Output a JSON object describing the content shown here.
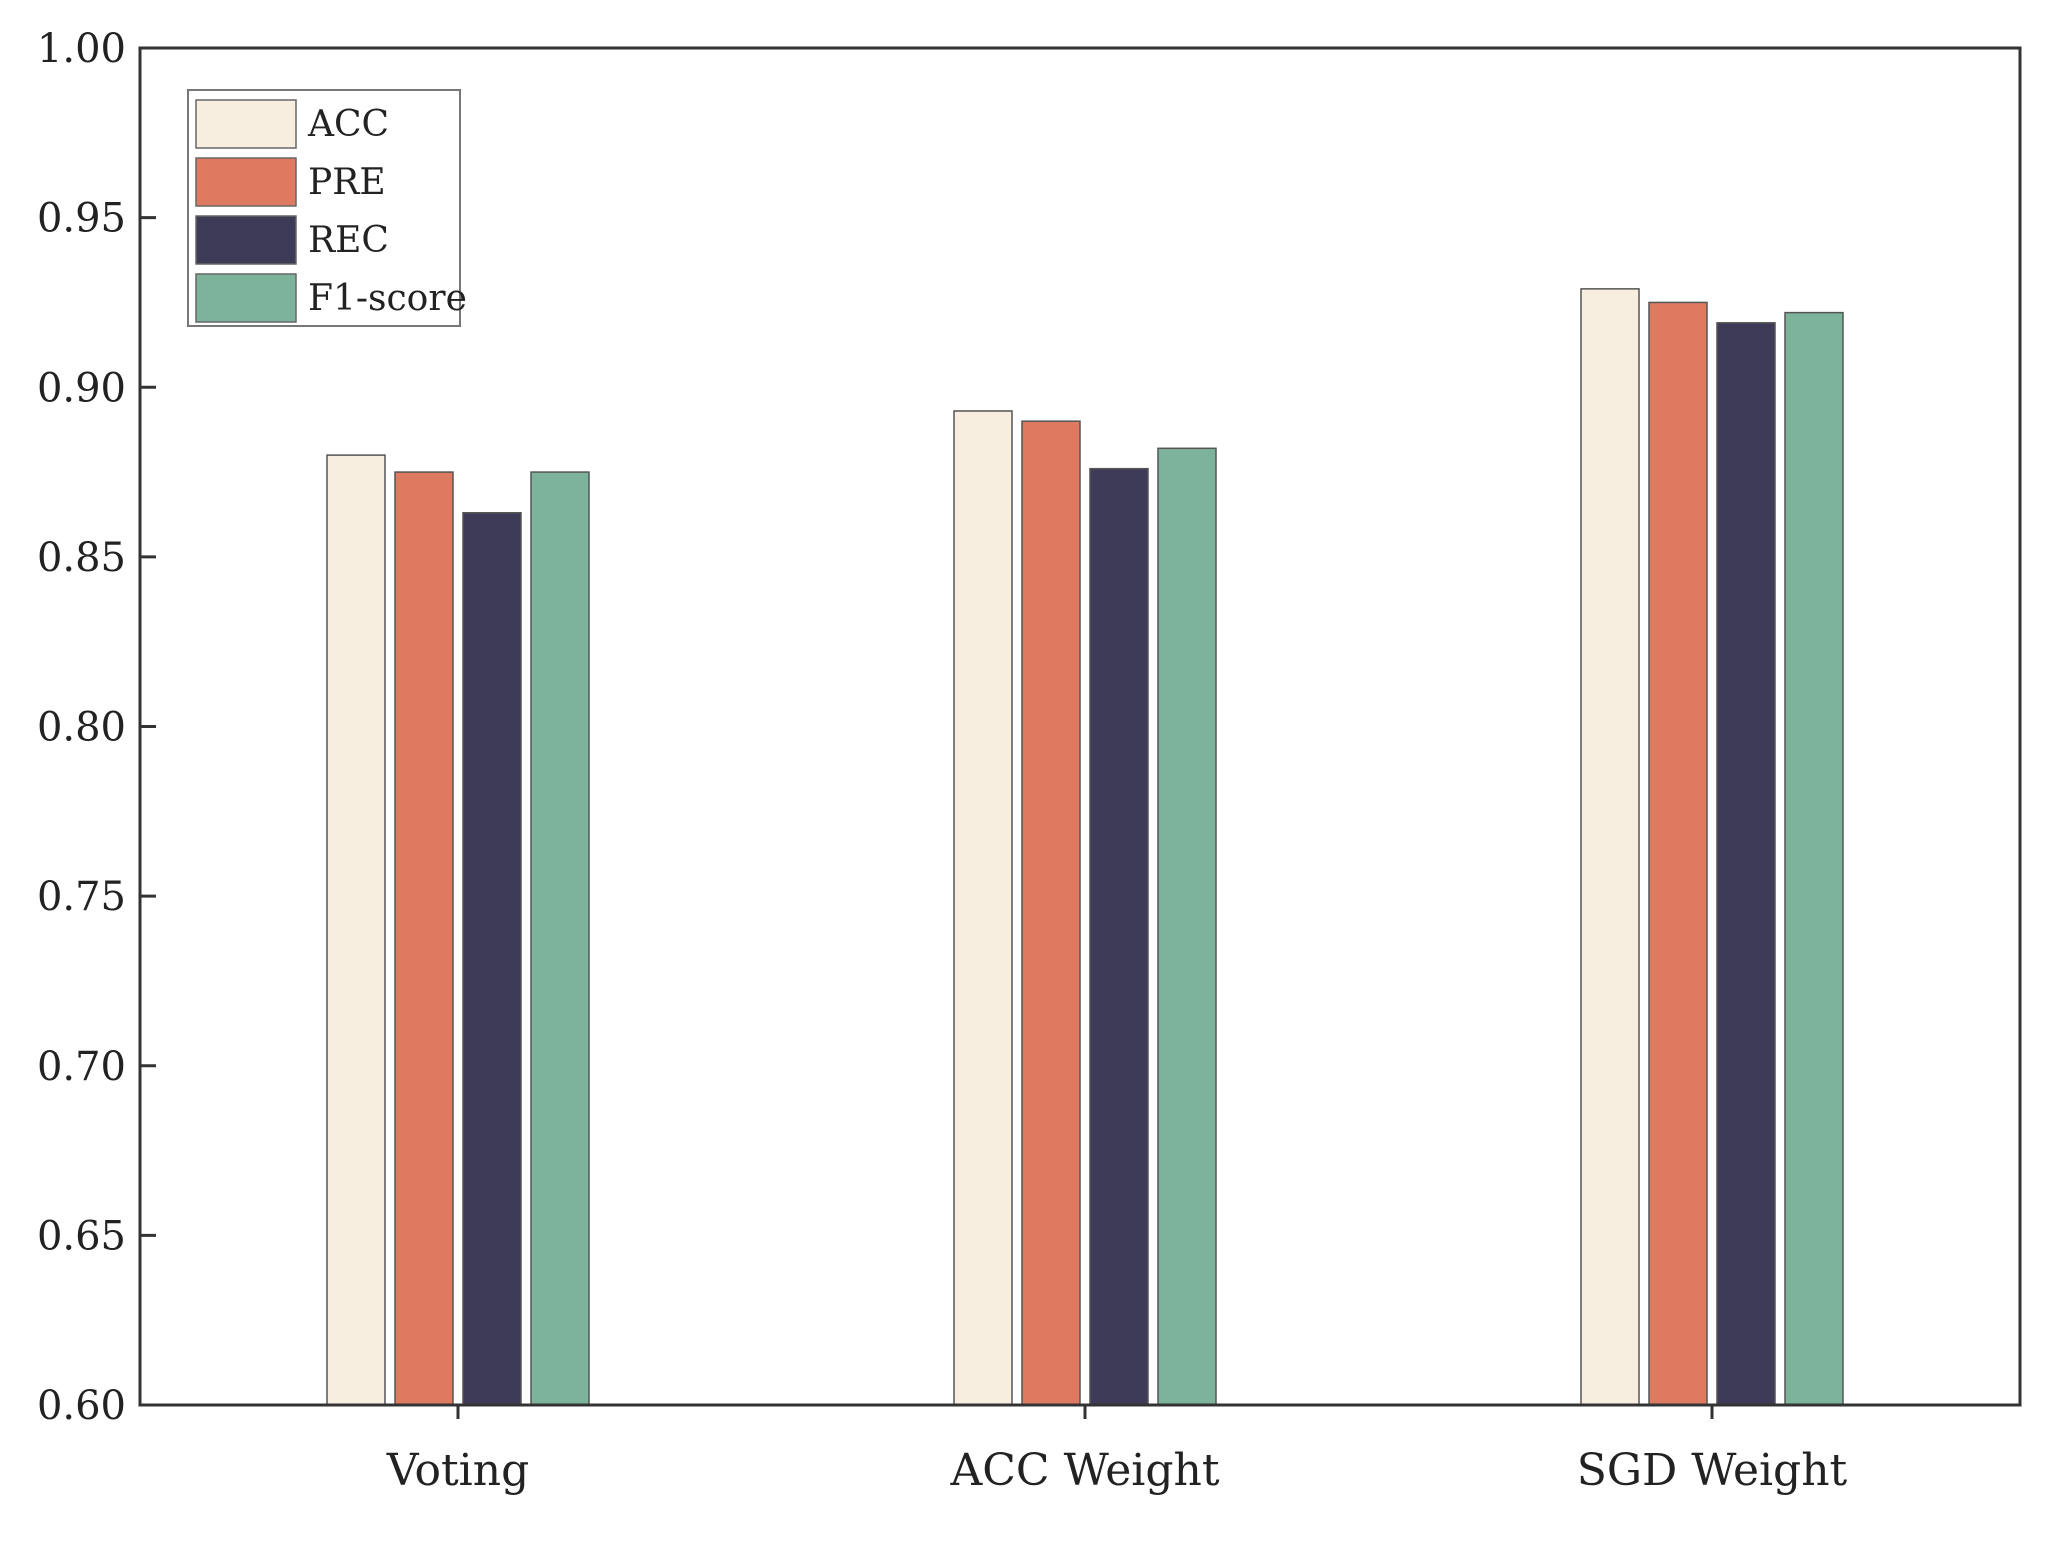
{
  "chart_data": {
    "type": "bar",
    "title": "",
    "xlabel": "",
    "ylabel": "",
    "categories": [
      "Voting",
      "ACC Weight",
      "SGD Weight"
    ],
    "series": [
      {
        "name": "ACC",
        "values": [
          0.88,
          0.893,
          0.929
        ],
        "color": "#f7eedf"
      },
      {
        "name": "PRE",
        "values": [
          0.875,
          0.89,
          0.925
        ],
        "color": "#dd7a60"
      },
      {
        "name": "REC",
        "values": [
          0.863,
          0.876,
          0.919
        ],
        "color": "#3d3b58"
      },
      {
        "name": "F1-score",
        "values": [
          0.875,
          0.882,
          0.922
        ],
        "color": "#7db29b"
      }
    ],
    "ylim": [
      0.6,
      1.0
    ],
    "yticks": [
      "0.60",
      "0.65",
      "0.70",
      "0.75",
      "0.80",
      "0.85",
      "0.90",
      "0.95",
      "1.00"
    ],
    "legend_position": "top-left",
    "grid": false
  }
}
